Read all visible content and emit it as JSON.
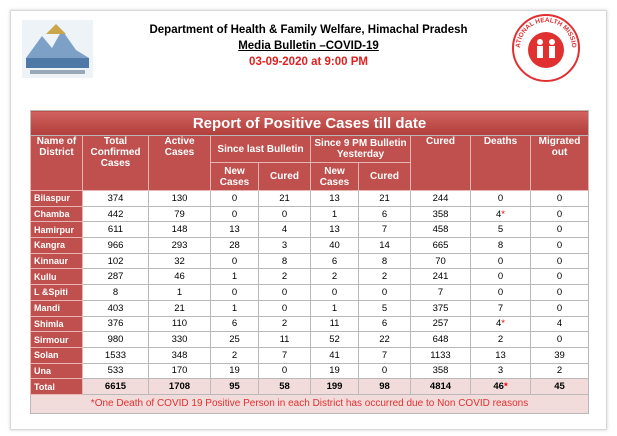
{
  "header": {
    "title": "Department of Health & Family Welfare, Himachal Pradesh",
    "subtitle": "Media Bulletin –COVID-19",
    "date": "03-09-2020 at 9:00 PM",
    "logo_right_text": "NATIONAL HEALTH MISSION"
  },
  "table": {
    "title": "Report of Positive Cases till date",
    "columns": {
      "name": "Name of District",
      "total": "Total Confirmed Cases",
      "active": "Active Cases",
      "since_last": "Since last Bulletin",
      "since_9pm": "Since 9 PM Bulletin Yesterday",
      "cured": "Cured",
      "deaths": "Deaths",
      "migrated": "Migrated out"
    },
    "subcolumns": [
      "New Cases",
      "Cured",
      "New Cases",
      "Cured"
    ],
    "rows": [
      [
        "Bilaspur",
        "374",
        "130",
        "0",
        "21",
        "13",
        "21",
        "244",
        "0",
        "0"
      ],
      [
        "Chamba",
        "442",
        "79",
        "0",
        "0",
        "1",
        "6",
        "358",
        {
          "text": "4",
          "mark": "*"
        },
        "0"
      ],
      [
        "Hamirpur",
        "611",
        "148",
        "13",
        "4",
        "13",
        "7",
        "458",
        "5",
        "0"
      ],
      [
        "Kangra",
        "966",
        "293",
        "28",
        "3",
        "40",
        "14",
        "665",
        "8",
        "0"
      ],
      [
        "Kinnaur",
        "102",
        "32",
        "0",
        "8",
        "6",
        "8",
        "70",
        "0",
        "0"
      ],
      [
        "Kullu",
        "287",
        "46",
        "1",
        "2",
        "2",
        "2",
        "241",
        "0",
        "0"
      ],
      [
        "L &Spiti",
        "8",
        "1",
        "0",
        "0",
        "0",
        "0",
        "7",
        "0",
        "0"
      ],
      [
        "Mandi",
        "403",
        "21",
        "1",
        "0",
        "1",
        "5",
        "375",
        "7",
        "0"
      ],
      [
        "Shimla",
        "376",
        "110",
        "6",
        "2",
        "11",
        "6",
        "257",
        {
          "text": "4",
          "mark": "*"
        },
        "4"
      ],
      [
        "Sirmour",
        "980",
        "330",
        "25",
        "11",
        "52",
        "22",
        "648",
        "2",
        "0"
      ],
      [
        "Solan",
        "1533",
        "348",
        "2",
        "7",
        "41",
        "7",
        "1133",
        "13",
        "39"
      ],
      [
        "Una",
        "533",
        "170",
        "19",
        "0",
        "19",
        "0",
        "358",
        "3",
        "2"
      ],
      [
        "Total",
        "6615",
        "1708",
        "95",
        "58",
        "199",
        "98",
        "4814",
        {
          "text": "46",
          "mark": "*"
        },
        "45"
      ]
    ],
    "footnote": "*One Death of COVID 19 Positive Person in each District has occurred due to Non COVID reasons"
  }
}
